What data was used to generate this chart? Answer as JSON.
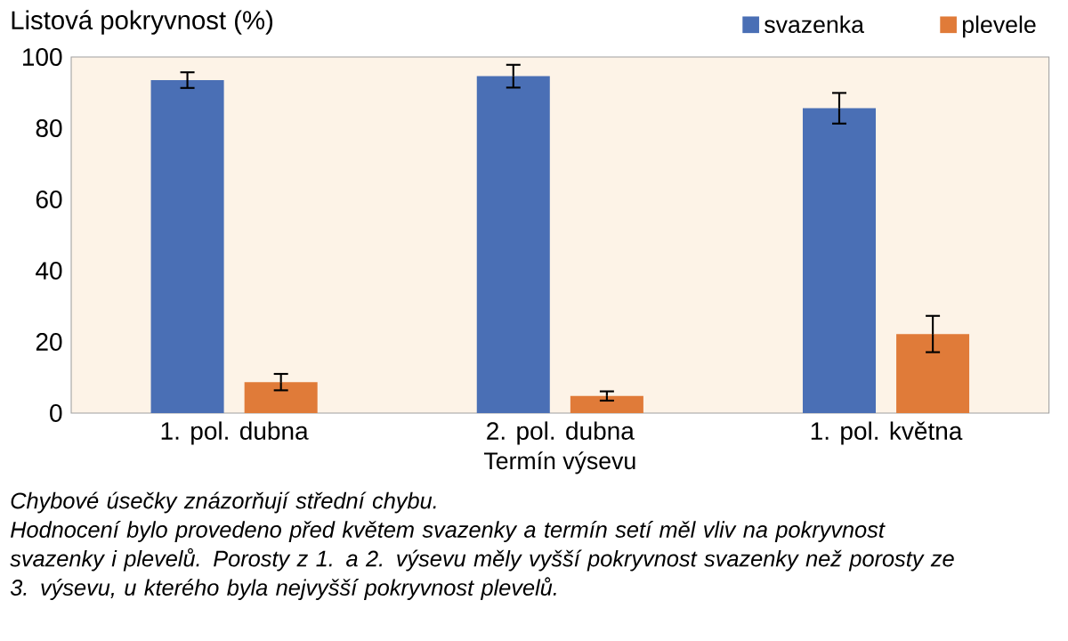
{
  "chart_data": {
    "type": "bar",
    "ylabel": "Listová pokryvnost (%)",
    "xlabel": "Termín výsevu",
    "categories": [
      "1. pol. dubna",
      "2. pol. dubna",
      "1. pol. května"
    ],
    "series": [
      {
        "name": "svazenka",
        "color": "#4a6fb5",
        "values": [
          93.5,
          94.6,
          85.6
        ],
        "errors": [
          2.2,
          3.2,
          4.3
        ]
      },
      {
        "name": "plevele",
        "color": "#e07b39",
        "values": [
          8.7,
          4.8,
          22.2
        ],
        "errors": [
          2.3,
          1.3,
          5.1
        ]
      }
    ],
    "ylim": [
      0,
      100
    ],
    "yticks": [
      0,
      20,
      40,
      60,
      80,
      100
    ],
    "legend": "top right",
    "grid": false,
    "annotations": [
      "Chybové úsečky znázorňují střední chybu.",
      "Hodnocení bylo provedeno před květem svazenky a termín setí měl vliv na pokryvnost svazenky i plevelů. Porosty z 1.  a 2. výsevu měly vyšší pokryvnost svazenky než porosty ze 3. výsevu, u kterého byla nejvyšší pokryvnost plevelů."
    ]
  }
}
